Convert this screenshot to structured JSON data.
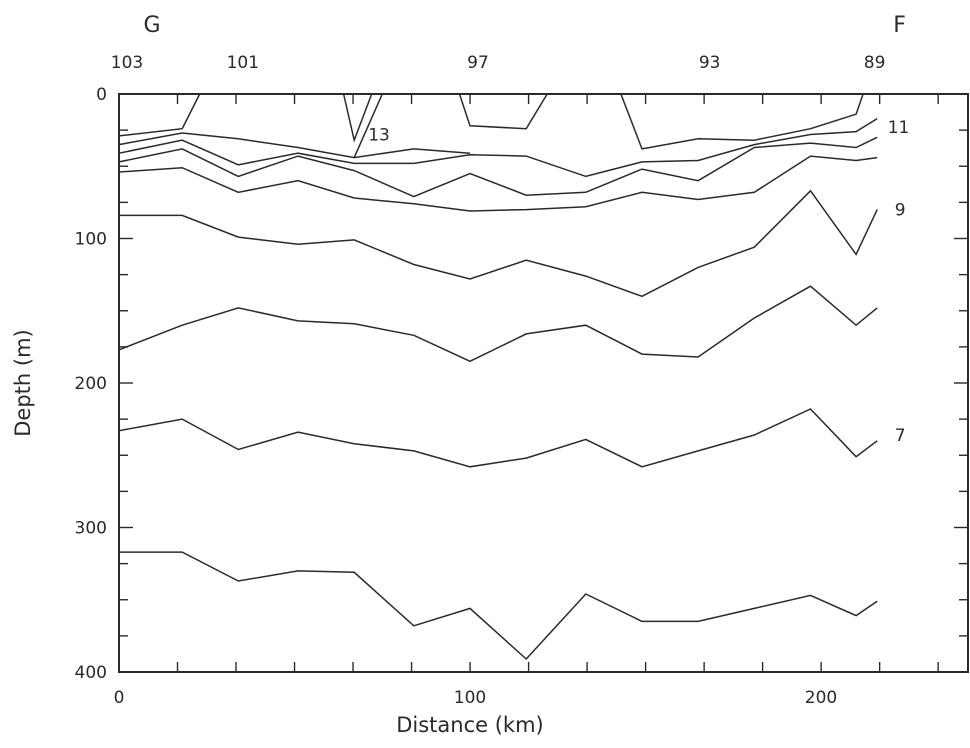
{
  "chart_data": {
    "type": "line",
    "xlabel": "Distance (km)",
    "ylabel": "Depth (m)",
    "xlim": [
      0,
      240
    ],
    "ylim": [
      400,
      0
    ],
    "x_ticks": [
      0,
      100,
      200
    ],
    "y_ticks": [
      0,
      100,
      200,
      300,
      400
    ],
    "section_endpoints": [
      {
        "label": "G",
        "distance": 0
      },
      {
        "label": "F",
        "distance": 213
      }
    ],
    "stations": [
      {
        "label": "103",
        "distance": 0
      },
      {
        "label": "101",
        "distance": 33
      },
      {
        "label": "97",
        "distance": 100
      },
      {
        "label": "93",
        "distance": 166
      },
      {
        "label": "89",
        "distance": 213
      }
    ],
    "isotherms": [
      {
        "label": "7",
        "label_at": [
          221,
          236
        ],
        "points": [
          [
            0,
            233
          ],
          [
            18,
            225
          ],
          [
            34,
            246
          ],
          [
            51,
            234
          ],
          [
            67,
            242
          ],
          [
            84,
            247
          ],
          [
            100,
            258
          ],
          [
            116,
            252
          ],
          [
            133,
            239
          ],
          [
            149,
            258
          ],
          [
            165,
            247
          ],
          [
            181,
            236
          ],
          [
            197,
            218
          ],
          [
            210,
            251
          ],
          [
            216,
            240
          ]
        ]
      },
      {
        "label": "",
        "label_at": null,
        "points": [
          [
            0,
            317
          ],
          [
            18,
            317
          ],
          [
            34,
            337
          ],
          [
            51,
            330
          ],
          [
            67,
            331
          ],
          [
            84,
            368
          ],
          [
            100,
            356
          ],
          [
            116,
            391
          ],
          [
            133,
            346
          ],
          [
            149,
            365
          ],
          [
            165,
            365
          ],
          [
            181,
            356
          ],
          [
            197,
            347
          ],
          [
            210,
            361
          ],
          [
            216,
            351
          ]
        ]
      },
      {
        "label": "",
        "label_at": null,
        "points": [
          [
            0,
            177
          ],
          [
            18,
            160
          ],
          [
            34,
            148
          ],
          [
            51,
            157
          ],
          [
            67,
            159
          ],
          [
            84,
            167
          ],
          [
            100,
            185
          ],
          [
            116,
            166
          ],
          [
            133,
            160
          ],
          [
            149,
            180
          ],
          [
            165,
            182
          ],
          [
            181,
            155
          ],
          [
            197,
            133
          ],
          [
            210,
            160
          ],
          [
            216,
            148
          ]
        ]
      },
      {
        "label": "",
        "label_at": null,
        "points": [
          [
            0,
            84
          ],
          [
            18,
            84
          ],
          [
            34,
            99
          ],
          [
            51,
            104
          ],
          [
            67,
            101
          ],
          [
            84,
            118
          ],
          [
            100,
            128
          ],
          [
            116,
            115
          ],
          [
            133,
            126
          ],
          [
            149,
            140
          ],
          [
            165,
            120
          ],
          [
            181,
            106
          ],
          [
            197,
            67
          ],
          [
            210,
            111
          ],
          [
            216,
            80
          ]
        ]
      },
      {
        "label": "9",
        "label_at": [
          221,
          80
        ],
        "points": [
          [
            0,
            54
          ],
          [
            18,
            51
          ],
          [
            34,
            68
          ],
          [
            51,
            60
          ],
          [
            67,
            72
          ],
          [
            84,
            76
          ],
          [
            100,
            81
          ],
          [
            116,
            80
          ],
          [
            133,
            78
          ],
          [
            149,
            68
          ],
          [
            165,
            73
          ],
          [
            181,
            68
          ],
          [
            197,
            43
          ],
          [
            210,
            46
          ],
          [
            216,
            44
          ]
        ]
      },
      {
        "label": "",
        "label_at": null,
        "points": [
          [
            0,
            47
          ],
          [
            18,
            38
          ],
          [
            34,
            57
          ],
          [
            51,
            43
          ],
          [
            67,
            53
          ],
          [
            84,
            71
          ],
          [
            100,
            55
          ],
          [
            116,
            70
          ],
          [
            133,
            68
          ],
          [
            149,
            52
          ],
          [
            165,
            60
          ],
          [
            181,
            37
          ],
          [
            197,
            34
          ],
          [
            210,
            37
          ],
          [
            216,
            30
          ]
        ]
      },
      {
        "label": "11",
        "label_at": [
          219,
          23
        ],
        "points": [
          [
            0,
            41
          ],
          [
            18,
            32
          ],
          [
            34,
            49
          ],
          [
            51,
            41
          ],
          [
            67,
            48
          ],
          [
            84,
            48
          ],
          [
            100,
            42
          ],
          [
            116,
            43
          ],
          [
            133,
            57
          ],
          [
            149,
            47
          ],
          [
            165,
            46
          ],
          [
            181,
            35
          ],
          [
            197,
            28
          ],
          [
            210,
            26
          ],
          [
            216,
            17
          ]
        ]
      },
      {
        "label": "",
        "label_at": null,
        "points": [
          [
            0,
            35
          ],
          [
            18,
            27
          ],
          [
            34,
            31
          ],
          [
            51,
            37
          ],
          [
            67,
            44
          ],
          [
            84,
            38
          ],
          [
            100,
            41
          ]
        ]
      },
      {
        "label": "",
        "label_at": null,
        "points": [
          [
            0,
            29
          ],
          [
            18,
            24
          ],
          [
            23,
            0
          ]
        ]
      },
      {
        "label": "13",
        "label_at": [
          71,
          28
        ],
        "points": [
          [
            64,
            0
          ],
          [
            67,
            32
          ],
          [
            72,
            0
          ]
        ]
      },
      {
        "label": "",
        "label_at": null,
        "points": [
          [
            67,
            44
          ],
          [
            75,
            0
          ]
        ]
      },
      {
        "label": "",
        "label_at": null,
        "points": [
          [
            97,
            0
          ],
          [
            100,
            22
          ],
          [
            116,
            24
          ],
          [
            122,
            0
          ]
        ]
      },
      {
        "label": "",
        "label_at": null,
        "points": [
          [
            143,
            0
          ],
          [
            149,
            38
          ],
          [
            165,
            31
          ],
          [
            181,
            32
          ],
          [
            197,
            24
          ],
          [
            210,
            14
          ],
          [
            212,
            0
          ]
        ]
      }
    ]
  }
}
